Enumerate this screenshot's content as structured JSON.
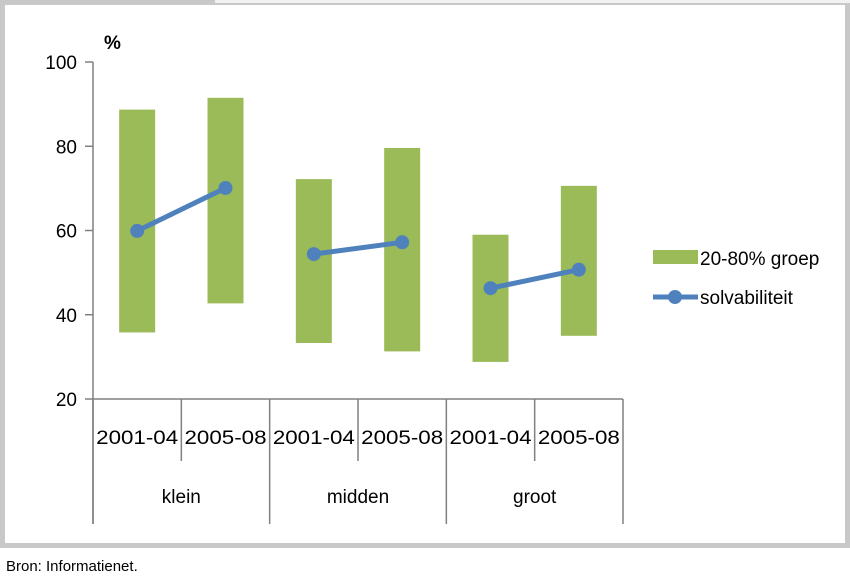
{
  "source": "Bron: Informatienet.",
  "chart_data": {
    "type": "bar",
    "ylabel": "%",
    "ylim": [
      20,
      100
    ],
    "yticks": [
      20,
      40,
      60,
      80,
      100
    ],
    "groups": [
      "klein",
      "midden",
      "groot"
    ],
    "categories": [
      "2001-04",
      "2005-08",
      "2001-04",
      "2005-08",
      "2001-04",
      "2005-08"
    ],
    "series": [
      {
        "name": "20-80% groep",
        "kind": "floating-bar",
        "color": "#9bbb59",
        "low": [
          35.8,
          42.7,
          33.3,
          31.3,
          28.8,
          35.0
        ],
        "high": [
          88.7,
          91.5,
          72.2,
          79.6,
          59.0,
          70.6
        ]
      },
      {
        "name": "solvabiliteit",
        "kind": "line",
        "color": "#4f81bd",
        "values": [
          59.9,
          70.1,
          54.4,
          57.2,
          46.3,
          50.7
        ],
        "segments": [
          [
            0,
            1
          ],
          [
            2,
            3
          ],
          [
            4,
            5
          ]
        ]
      }
    ],
    "legend_position": "right"
  }
}
